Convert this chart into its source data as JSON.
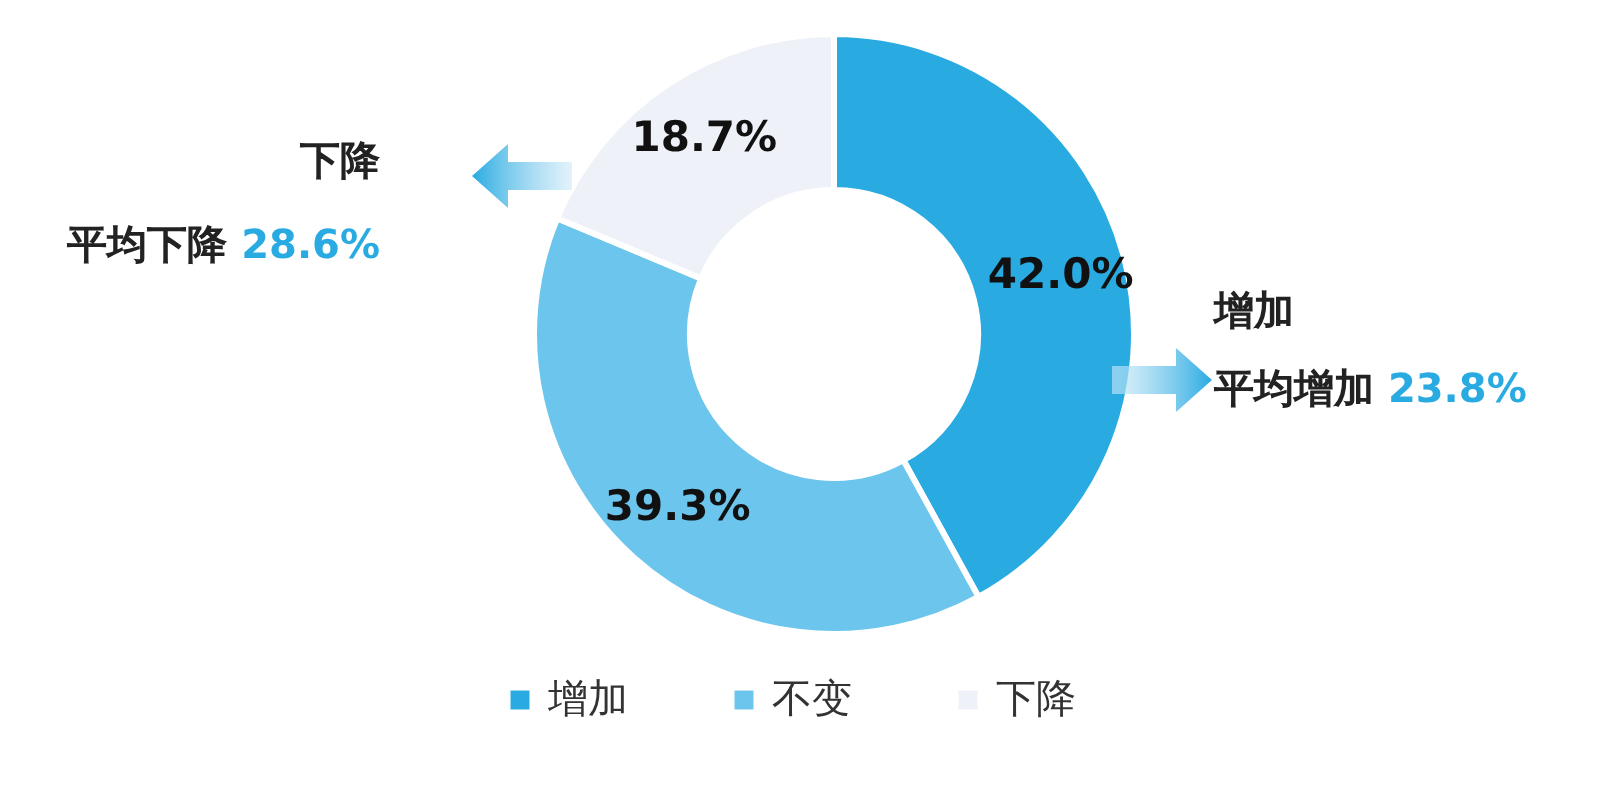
{
  "chart_data": {
    "type": "donut",
    "categories": [
      "增加",
      "不变",
      "下降"
    ],
    "values": [
      42.0,
      39.3,
      18.7
    ],
    "colors": [
      "#29abe2",
      "#6cc5ec",
      "#eef2f8"
    ],
    "value_labels": [
      "42.0%",
      "39.3%",
      "18.7%"
    ],
    "legend": "bottom",
    "annotations": [
      "下降",
      "平均下降 28.6%",
      "增加",
      "平均增加 23.8%"
    ]
  }
}
